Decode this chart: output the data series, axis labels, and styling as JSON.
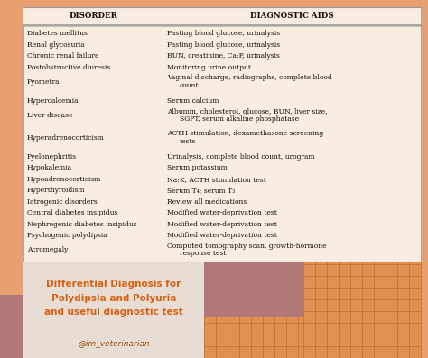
{
  "title": "Differential Diagnosis for\nPolydipsia and Polyuria\nand useful diagnostic test",
  "subtitle": "@im_veterinarian",
  "col1_header": "DISORDER",
  "col2_header": "DIAGNOSTIC AIDS",
  "rows": [
    [
      "Diabetes mellitus",
      "Fasting blood glucose, urinalysis",
      false
    ],
    [
      "Renal glycosuria",
      "Fasting blood glucose, urinalysis",
      false
    ],
    [
      "Chronic renal failure",
      "BUN, creatinine, Ca:P, urinalysis",
      false
    ],
    [
      "Postobstructive diuresis",
      "Monitoring urine output",
      false
    ],
    [
      "Pyometra",
      "Vaginal discharge, radiographs, complete blood\ncount",
      false
    ],
    [
      "",
      "",
      true
    ],
    [
      "Hypercalcemia",
      "Serum calcium",
      false
    ],
    [
      "Liver disease",
      "Albumin, cholesterol, glucose, BUN, liver size,\nSGPT, serum alkaline phosphatase",
      false
    ],
    [
      "",
      "",
      true
    ],
    [
      "Hyperadrenocorticism",
      "ACTH stimulation, dexamethasone screening\ntests",
      false
    ],
    [
      "",
      "",
      true
    ],
    [
      "Pyelonephritis",
      "Urinalysis, complete blood count, urogram",
      false
    ],
    [
      "Hypokalemia",
      "Serum potassium",
      false
    ],
    [
      "Hypoadrenocorticism",
      "Na:K, ACTH stimulation test",
      false
    ],
    [
      "Hyperthyroidism",
      "Serum T₄; serum T₃",
      false
    ],
    [
      "Iatrogenic disorders",
      "Review all medications",
      false
    ],
    [
      "Central diabetes insipidus",
      "Modified water-deprivation test",
      false
    ],
    [
      "Nephrogenic diabetes insipidus",
      "Modified water-deprivation test",
      false
    ],
    [
      "Psychogenic polydipsia",
      "Modified water-deprivation test",
      false
    ],
    [
      "Acromegaly",
      "Computed tomography scan, growth-hormone\nresponse test",
      false
    ]
  ],
  "bg_color": "#e8a070",
  "table_bg": "#f8ede0",
  "text_color": "#1a0a00",
  "title_color": "#d86010",
  "subtitle_color": "#a05010",
  "title_box_color": "#e8ddd4",
  "deco_dark_color": "#b07878",
  "deco_grid_color": "#e09050",
  "deco_grid_line_color": "#c87030"
}
